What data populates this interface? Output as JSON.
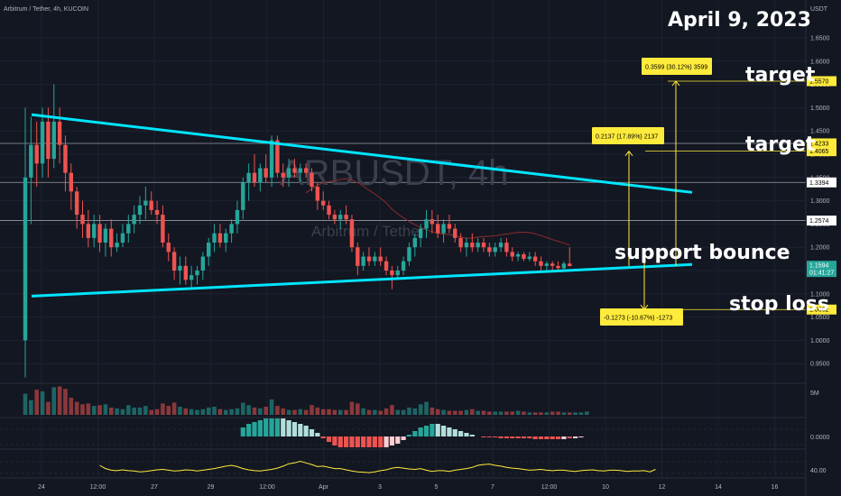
{
  "header": {
    "pair_label": "Arbitrum / Tether, 4h, KUCOIN",
    "quote": "USDT"
  },
  "date_overlay": "April  9, 2023",
  "watermark": {
    "symbol": "ARBUSDT, 4h",
    "name": "Arbitrum / Tether"
  },
  "colors": {
    "up": "#26a69a",
    "down": "#ef5350",
    "trend": "#00e5ff",
    "label_bg": "#ffeb3b",
    "yellow_line": "#ffeb3b",
    "hline": "#d1d4dc",
    "bg": "#131722",
    "ma": "#8b2c2c"
  },
  "annotations": [
    {
      "text": "target",
      "price": 1.557
    },
    {
      "text": "target",
      "price": 1.4065
    },
    {
      "text": "support bounce",
      "price": 1.2
    },
    {
      "text": "stop loss",
      "price": 1.0662
    }
  ],
  "measure_labels": [
    {
      "text": "0.3599 (30.12%) 3599",
      "price": 1.575
    },
    {
      "text": "0.2137 (17.89%) 2137",
      "price": 1.422
    },
    {
      "text": "-0.1273 (-10.67%) -1273",
      "price": 1.012
    }
  ],
  "price_axis": {
    "ticks": [
      "1.6500",
      "1.6000",
      "1.5500",
      "1.5000",
      "1.4500",
      "1.4000",
      "1.3500",
      "1.3000",
      "1.2500",
      "1.2000",
      "1.1500",
      "1.1000",
      "1.0500",
      "1.0000",
      "0.9500"
    ],
    "yellow_tags": [
      {
        "label": "1.5570",
        "price": 1.557
      },
      {
        "label": "1.4233",
        "price": 1.4233
      },
      {
        "label": "1.4065",
        "price": 1.4065
      },
      {
        "label": "1.0662",
        "price": 1.0662
      }
    ],
    "white_tags": [
      {
        "label": "1.3394",
        "price": 1.3394
      },
      {
        "label": "1.2574",
        "price": 1.2574
      }
    ],
    "current": {
      "label1": "1.1594",
      "label2": "01:41:27",
      "price": 1.1594
    }
  },
  "time_axis": [
    "24",
    "12:00",
    "27",
    "29",
    "12:00",
    "Apr",
    "3",
    "5",
    "7",
    "12:00",
    "10",
    "12",
    "14",
    "16"
  ],
  "volume_pane": {
    "label": "5M"
  },
  "osc_pane": {
    "label": "0.0000"
  },
  "rsi_pane": {
    "label": "40.00"
  },
  "chart_data": {
    "type": "candlestick",
    "symbol": "ARBUSDT",
    "interval": "4h",
    "ylim": [
      0.9,
      1.7
    ],
    "candles": [
      {
        "o": 1.0,
        "h": 1.5,
        "l": 0.92,
        "c": 1.35
      },
      {
        "o": 1.35,
        "h": 1.48,
        "l": 1.25,
        "c": 1.42
      },
      {
        "o": 1.42,
        "h": 1.47,
        "l": 1.33,
        "c": 1.38
      },
      {
        "o": 1.38,
        "h": 1.5,
        "l": 1.35,
        "c": 1.47
      },
      {
        "o": 1.47,
        "h": 1.5,
        "l": 1.35,
        "c": 1.39
      },
      {
        "o": 1.39,
        "h": 1.55,
        "l": 1.37,
        "c": 1.47
      },
      {
        "o": 1.47,
        "h": 1.5,
        "l": 1.38,
        "c": 1.42
      },
      {
        "o": 1.42,
        "h": 1.44,
        "l": 1.32,
        "c": 1.36
      },
      {
        "o": 1.36,
        "h": 1.38,
        "l": 1.28,
        "c": 1.32
      },
      {
        "o": 1.32,
        "h": 1.33,
        "l": 1.24,
        "c": 1.27
      },
      {
        "o": 1.27,
        "h": 1.3,
        "l": 1.22,
        "c": 1.25
      },
      {
        "o": 1.25,
        "h": 1.28,
        "l": 1.2,
        "c": 1.22
      },
      {
        "o": 1.22,
        "h": 1.27,
        "l": 1.2,
        "c": 1.25
      },
      {
        "o": 1.25,
        "h": 1.27,
        "l": 1.19,
        "c": 1.21
      },
      {
        "o": 1.21,
        "h": 1.25,
        "l": 1.18,
        "c": 1.24
      },
      {
        "o": 1.24,
        "h": 1.26,
        "l": 1.18,
        "c": 1.2
      },
      {
        "o": 1.2,
        "h": 1.23,
        "l": 1.19,
        "c": 1.21
      },
      {
        "o": 1.21,
        "h": 1.25,
        "l": 1.2,
        "c": 1.23
      },
      {
        "o": 1.23,
        "h": 1.27,
        "l": 1.21,
        "c": 1.25
      },
      {
        "o": 1.25,
        "h": 1.29,
        "l": 1.23,
        "c": 1.27
      },
      {
        "o": 1.27,
        "h": 1.31,
        "l": 1.25,
        "c": 1.29
      },
      {
        "o": 1.29,
        "h": 1.33,
        "l": 1.26,
        "c": 1.3
      },
      {
        "o": 1.3,
        "h": 1.32,
        "l": 1.27,
        "c": 1.28
      },
      {
        "o": 1.28,
        "h": 1.3,
        "l": 1.25,
        "c": 1.27
      },
      {
        "o": 1.27,
        "h": 1.29,
        "l": 1.2,
        "c": 1.21
      },
      {
        "o": 1.21,
        "h": 1.23,
        "l": 1.17,
        "c": 1.19
      },
      {
        "o": 1.19,
        "h": 1.2,
        "l": 1.13,
        "c": 1.15
      },
      {
        "o": 1.15,
        "h": 1.18,
        "l": 1.12,
        "c": 1.16
      },
      {
        "o": 1.16,
        "h": 1.18,
        "l": 1.12,
        "c": 1.13
      },
      {
        "o": 1.13,
        "h": 1.16,
        "l": 1.11,
        "c": 1.14
      },
      {
        "o": 1.14,
        "h": 1.16,
        "l": 1.12,
        "c": 1.15
      },
      {
        "o": 1.15,
        "h": 1.19,
        "l": 1.13,
        "c": 1.18
      },
      {
        "o": 1.18,
        "h": 1.22,
        "l": 1.16,
        "c": 1.21
      },
      {
        "o": 1.21,
        "h": 1.25,
        "l": 1.19,
        "c": 1.23
      },
      {
        "o": 1.23,
        "h": 1.25,
        "l": 1.2,
        "c": 1.21
      },
      {
        "o": 1.21,
        "h": 1.24,
        "l": 1.19,
        "c": 1.23
      },
      {
        "o": 1.23,
        "h": 1.26,
        "l": 1.21,
        "c": 1.25
      },
      {
        "o": 1.25,
        "h": 1.3,
        "l": 1.23,
        "c": 1.28
      },
      {
        "o": 1.28,
        "h": 1.35,
        "l": 1.26,
        "c": 1.34
      },
      {
        "o": 1.34,
        "h": 1.38,
        "l": 1.3,
        "c": 1.36
      },
      {
        "o": 1.36,
        "h": 1.4,
        "l": 1.33,
        "c": 1.34
      },
      {
        "o": 1.34,
        "h": 1.38,
        "l": 1.32,
        "c": 1.37
      },
      {
        "o": 1.37,
        "h": 1.4,
        "l": 1.34,
        "c": 1.35
      },
      {
        "o": 1.35,
        "h": 1.44,
        "l": 1.33,
        "c": 1.43
      },
      {
        "o": 1.43,
        "h": 1.44,
        "l": 1.35,
        "c": 1.36
      },
      {
        "o": 1.36,
        "h": 1.38,
        "l": 1.33,
        "c": 1.35
      },
      {
        "o": 1.35,
        "h": 1.39,
        "l": 1.33,
        "c": 1.37
      },
      {
        "o": 1.37,
        "h": 1.39,
        "l": 1.35,
        "c": 1.36
      },
      {
        "o": 1.36,
        "h": 1.38,
        "l": 1.34,
        "c": 1.37
      },
      {
        "o": 1.37,
        "h": 1.38,
        "l": 1.35,
        "c": 1.36
      },
      {
        "o": 1.36,
        "h": 1.37,
        "l": 1.32,
        "c": 1.33
      },
      {
        "o": 1.33,
        "h": 1.34,
        "l": 1.28,
        "c": 1.3
      },
      {
        "o": 1.3,
        "h": 1.32,
        "l": 1.28,
        "c": 1.29
      },
      {
        "o": 1.29,
        "h": 1.3,
        "l": 1.26,
        "c": 1.27
      },
      {
        "o": 1.27,
        "h": 1.28,
        "l": 1.25,
        "c": 1.26
      },
      {
        "o": 1.26,
        "h": 1.28,
        "l": 1.24,
        "c": 1.27
      },
      {
        "o": 1.27,
        "h": 1.29,
        "l": 1.25,
        "c": 1.26
      },
      {
        "o": 1.26,
        "h": 1.27,
        "l": 1.19,
        "c": 1.2
      },
      {
        "o": 1.2,
        "h": 1.21,
        "l": 1.14,
        "c": 1.16
      },
      {
        "o": 1.16,
        "h": 1.19,
        "l": 1.15,
        "c": 1.18
      },
      {
        "o": 1.18,
        "h": 1.2,
        "l": 1.16,
        "c": 1.17
      },
      {
        "o": 1.17,
        "h": 1.19,
        "l": 1.16,
        "c": 1.18
      },
      {
        "o": 1.18,
        "h": 1.2,
        "l": 1.16,
        "c": 1.17
      },
      {
        "o": 1.17,
        "h": 1.18,
        "l": 1.14,
        "c": 1.15
      },
      {
        "o": 1.15,
        "h": 1.16,
        "l": 1.11,
        "c": 1.14
      },
      {
        "o": 1.14,
        "h": 1.16,
        "l": 1.13,
        "c": 1.15
      },
      {
        "o": 1.15,
        "h": 1.18,
        "l": 1.14,
        "c": 1.17
      },
      {
        "o": 1.17,
        "h": 1.21,
        "l": 1.16,
        "c": 1.2
      },
      {
        "o": 1.2,
        "h": 1.23,
        "l": 1.18,
        "c": 1.22
      },
      {
        "o": 1.22,
        "h": 1.25,
        "l": 1.2,
        "c": 1.24
      },
      {
        "o": 1.24,
        "h": 1.28,
        "l": 1.22,
        "c": 1.26
      },
      {
        "o": 1.26,
        "h": 1.28,
        "l": 1.23,
        "c": 1.25
      },
      {
        "o": 1.25,
        "h": 1.27,
        "l": 1.22,
        "c": 1.23
      },
      {
        "o": 1.23,
        "h": 1.26,
        "l": 1.21,
        "c": 1.25
      },
      {
        "o": 1.25,
        "h": 1.27,
        "l": 1.23,
        "c": 1.24
      },
      {
        "o": 1.24,
        "h": 1.25,
        "l": 1.21,
        "c": 1.22
      },
      {
        "o": 1.22,
        "h": 1.23,
        "l": 1.19,
        "c": 1.2
      },
      {
        "o": 1.2,
        "h": 1.22,
        "l": 1.18,
        "c": 1.21
      },
      {
        "o": 1.21,
        "h": 1.23,
        "l": 1.19,
        "c": 1.2
      },
      {
        "o": 1.2,
        "h": 1.22,
        "l": 1.19,
        "c": 1.21
      },
      {
        "o": 1.21,
        "h": 1.22,
        "l": 1.19,
        "c": 1.2
      },
      {
        "o": 1.2,
        "h": 1.21,
        "l": 1.18,
        "c": 1.19
      },
      {
        "o": 1.19,
        "h": 1.21,
        "l": 1.18,
        "c": 1.2
      },
      {
        "o": 1.2,
        "h": 1.22,
        "l": 1.19,
        "c": 1.21
      },
      {
        "o": 1.21,
        "h": 1.22,
        "l": 1.18,
        "c": 1.19
      },
      {
        "o": 1.19,
        "h": 1.2,
        "l": 1.17,
        "c": 1.18
      },
      {
        "o": 1.18,
        "h": 1.19,
        "l": 1.17,
        "c": 1.185
      },
      {
        "o": 1.185,
        "h": 1.19,
        "l": 1.17,
        "c": 1.175
      },
      {
        "o": 1.175,
        "h": 1.19,
        "l": 1.17,
        "c": 1.18
      },
      {
        "o": 1.18,
        "h": 1.19,
        "l": 1.16,
        "c": 1.17
      },
      {
        "o": 1.17,
        "h": 1.18,
        "l": 1.15,
        "c": 1.16
      },
      {
        "o": 1.16,
        "h": 1.17,
        "l": 1.15,
        "c": 1.165
      },
      {
        "o": 1.165,
        "h": 1.17,
        "l": 1.15,
        "c": 1.16
      },
      {
        "o": 1.16,
        "h": 1.17,
        "l": 1.15,
        "c": 1.155
      },
      {
        "o": 1.155,
        "h": 1.17,
        "l": 1.15,
        "c": 1.165
      },
      {
        "o": 1.165,
        "h": 1.2,
        "l": 1.16,
        "c": 1.1594
      }
    ],
    "trendlines": [
      {
        "name": "upper",
        "from": {
          "bar": 0,
          "price": 1.485
        },
        "to": {
          "bar": 120,
          "price": 1.318
        }
      },
      {
        "name": "lower",
        "from": {
          "bar": 0,
          "price": 1.095
        },
        "to": {
          "bar": 120,
          "price": 1.163
        }
      }
    ],
    "horizontal_lines": [
      1.4233,
      1.3394,
      1.2574
    ],
    "volumes": [
      2.6,
      1.8,
      3.1,
      2.9,
      1.6,
      3.4,
      3.5,
      3.2,
      2.1,
      1.6,
      1.3,
      1.4,
      1.1,
      1.2,
      1.3,
      0.9,
      0.8,
      0.7,
      1.2,
      0.9,
      0.9,
      1.1,
      0.6,
      0.7,
      1.4,
      1.1,
      1.5,
      1.0,
      0.8,
      0.7,
      0.6,
      0.7,
      0.9,
      1.0,
      0.7,
      0.6,
      0.7,
      0.8,
      1.5,
      1.2,
      0.9,
      0.8,
      1.0,
      1.9,
      1.1,
      0.8,
      0.6,
      0.6,
      0.7,
      0.6,
      1.2,
      0.9,
      0.7,
      0.7,
      0.6,
      0.6,
      0.6,
      1.6,
      1.4,
      0.8,
      0.6,
      0.6,
      0.5,
      0.8,
      1.2,
      0.6,
      0.6,
      0.9,
      0.8,
      1.3,
      1.6,
      0.9,
      0.7,
      0.6,
      0.5,
      0.5,
      0.5,
      0.6,
      0.7,
      0.5,
      0.5,
      0.4,
      0.4,
      0.4,
      0.4,
      0.4,
      0.5,
      0.4,
      0.3,
      0.3,
      0.3,
      0.3,
      0.4,
      0.4,
      0.3,
      0.3,
      0.3,
      0.3,
      0.4
    ],
    "oscillator": [
      0,
      0,
      0,
      0,
      0,
      0,
      0,
      0,
      0,
      0,
      0,
      0,
      0,
      0,
      0,
      0,
      0,
      0,
      0,
      0,
      0,
      0,
      0,
      0,
      0,
      0,
      0,
      0,
      0,
      0,
      0,
      0,
      0,
      0,
      0,
      0,
      0,
      0,
      0.5,
      0.7,
      0.8,
      0.9,
      1.0,
      1.0,
      1.0,
      1.0,
      0.9,
      0.8,
      0.7,
      0.6,
      0.4,
      0.2,
      -0.1,
      -0.3,
      -0.5,
      -0.6,
      -0.6,
      -0.6,
      -0.6,
      -0.6,
      -0.6,
      -0.6,
      -0.6,
      -0.6,
      -0.5,
      -0.4,
      -0.2,
      0.1,
      0.3,
      0.5,
      0.6,
      0.7,
      0.7,
      0.6,
      0.5,
      0.4,
      0.3,
      0.2,
      0.1,
      0.0,
      -0.05,
      -0.05,
      -0.05,
      -0.1,
      -0.1,
      -0.1,
      -0.1,
      -0.1,
      -0.1,
      -0.15,
      -0.15,
      -0.15,
      -0.15,
      -0.15,
      -0.15,
      -0.1,
      -0.1,
      -0.05,
      0
    ],
    "rsi": [
      60,
      52,
      48,
      47,
      49,
      47,
      46,
      44,
      45,
      47,
      49,
      50,
      48,
      46,
      47,
      49,
      48,
      46,
      48,
      50,
      52,
      55,
      58,
      60,
      57,
      52,
      49,
      47,
      46,
      48,
      50,
      53,
      58,
      64,
      66,
      70,
      66,
      62,
      57,
      58,
      55,
      52,
      52,
      49,
      46,
      44,
      43,
      42,
      44,
      47,
      49,
      53,
      55,
      53,
      51,
      50,
      52,
      48,
      45,
      47,
      47,
      45,
      48,
      50,
      52,
      55,
      60,
      62,
      63,
      60,
      58,
      55,
      53,
      52,
      50,
      48,
      49,
      50,
      48,
      47,
      48,
      48,
      46,
      45,
      47,
      48,
      49,
      47,
      46,
      48,
      48,
      47,
      45,
      46,
      46,
      47,
      44,
      50
    ]
  }
}
